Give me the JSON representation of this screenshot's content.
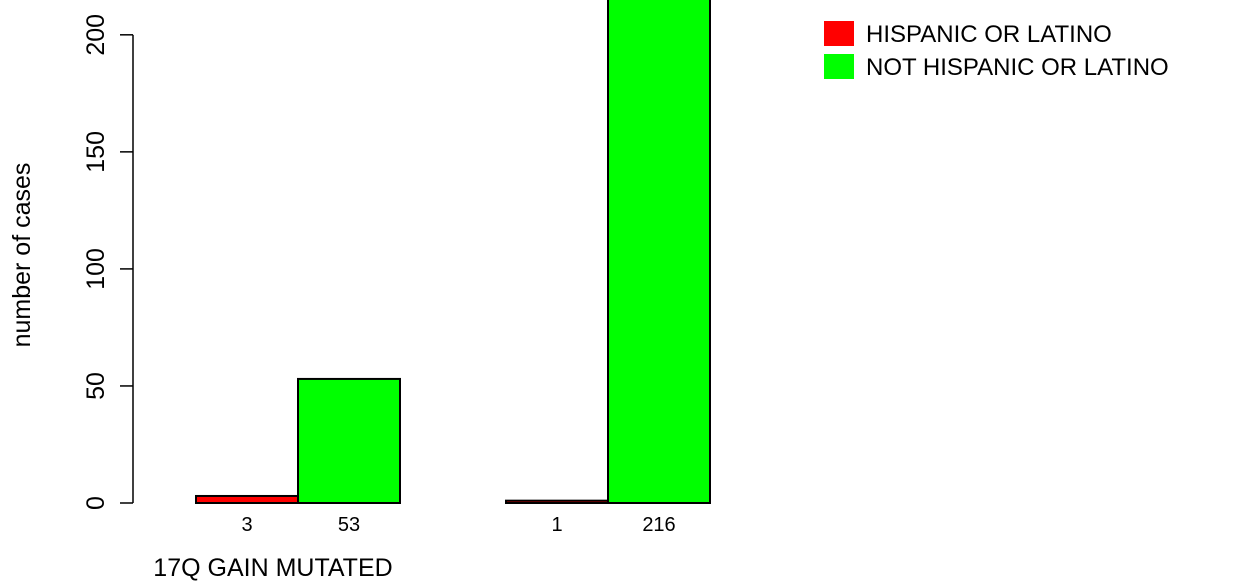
{
  "chart_data": {
    "type": "bar",
    "ylabel": "number of cases",
    "ylim": [
      0,
      220
    ],
    "yticks": [
      0,
      50,
      100,
      150,
      200
    ],
    "groups": [
      {
        "label": "17Q GAIN MUTATED"
      },
      {
        "label": ""
      }
    ],
    "series": [
      {
        "name": "HISPANIC OR LATINO",
        "color": "#ff0000",
        "values": [
          3,
          1
        ]
      },
      {
        "name": "NOT HISPANIC OR LATINO",
        "color": "#00ff00",
        "values": [
          53,
          216
        ]
      }
    ],
    "bar_value_labels": [
      "3",
      "53",
      "1",
      "216"
    ]
  }
}
